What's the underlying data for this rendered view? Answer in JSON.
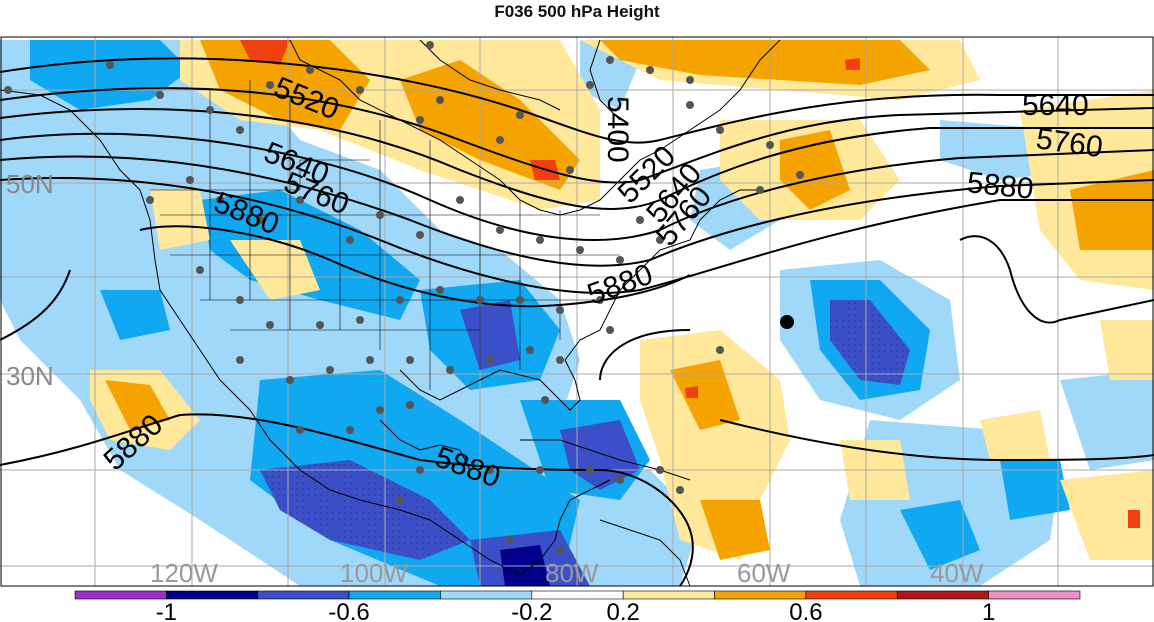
{
  "title": "F036 500 hPa Height",
  "map": {
    "lat_labels": [
      "50N",
      "30N"
    ],
    "lon_labels": [
      "120W",
      "100W",
      "80W",
      "60W",
      "40W"
    ],
    "contour_labels": [
      "5520",
      "5640",
      "5760",
      "5880",
      "5400",
      "5520",
      "5640",
      "5760",
      "5640",
      "5760",
      "5880",
      "5880",
      "5880",
      "5880"
    ]
  },
  "colorbar": {
    "labels": [
      "-1",
      "-0.6",
      "-0.2",
      "0.2",
      "0.6",
      "1"
    ],
    "colors": [
      "#9b30c8",
      "#00008b",
      "#3b4fc8",
      "#10a8f0",
      "#9fd8f8",
      "#ffffff",
      "#ffe89a",
      "#f5a300",
      "#f04010",
      "#b01818",
      "#f090c0"
    ]
  }
}
